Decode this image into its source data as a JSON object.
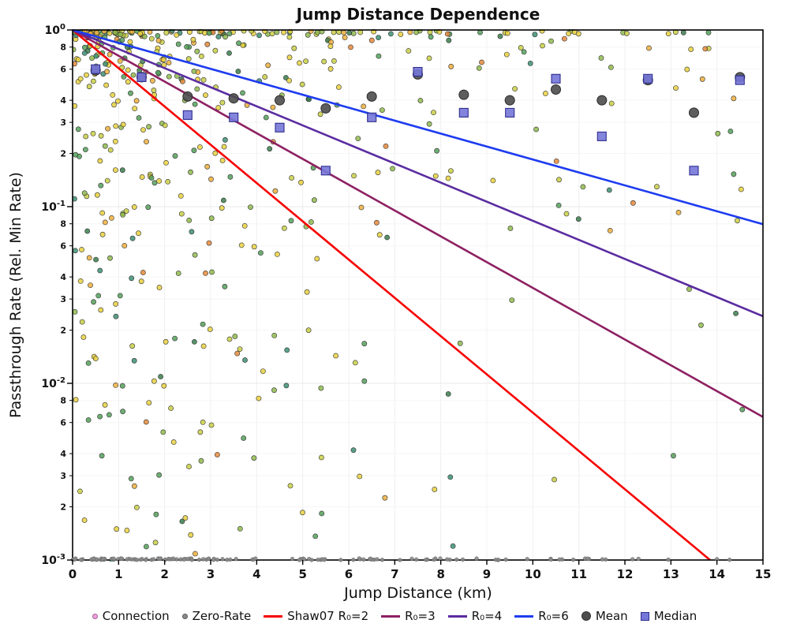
{
  "chart": {
    "title": "Jump Distance Dependence",
    "xlabel": "Jump Distance (km)",
    "ylabel": "Passthrough Rate (Rel. Min Rate)"
  },
  "chart_data": {
    "type": "scatter",
    "title": "Jump Distance Dependence",
    "xlabel": "Jump Distance (km)",
    "ylabel": "Passthrough Rate (Rel. Min Rate)",
    "xlim": [
      0,
      15
    ],
    "x_ticks": [
      0,
      1,
      2,
      3,
      4,
      5,
      6,
      7,
      8,
      9,
      10,
      11,
      12,
      13,
      14,
      15
    ],
    "y_scale": "log",
    "ylim": [
      0.001,
      1.0
    ],
    "y_decades": [
      0,
      -1,
      -2,
      -3
    ],
    "y_minor_labels": [
      8,
      6,
      4,
      3,
      2
    ],
    "grid": true,
    "legend_position": "bottom",
    "series": [
      {
        "name": "Connection",
        "type": "scatter",
        "marker": "circle",
        "count": 540,
        "seed": 1337,
        "point_radius_px": 3.1,
        "x_distribution": {
          "type": "mixture",
          "exponential_mean_km": 3.0,
          "uniform_fraction": 0.25,
          "max": 14.9
        },
        "y_distribution": {
          "type": "log_power",
          "decades": 3,
          "power": 2.8
        },
        "palette": [
          {
            "color": "#e8d13f",
            "w": 0.26
          },
          {
            "color": "#c9cf45",
            "w": 0.14
          },
          {
            "color": "#8fba4c",
            "w": 0.13
          },
          {
            "color": "#55a05a",
            "w": 0.17
          },
          {
            "color": "#3d8f74",
            "w": 0.08
          },
          {
            "color": "#ecaf3d",
            "w": 0.11
          },
          {
            "color": "#e5893a",
            "w": 0.05
          },
          {
            "color": "#3b7d4e",
            "w": 0.06
          }
        ]
      },
      {
        "name": "Zero-Rate",
        "type": "scatter",
        "marker": "circle",
        "color": "#8a8a8a",
        "count": 130,
        "seed": 99,
        "y_value": 0.001,
        "x_max": 14.3
      },
      {
        "name": "Shaw07 R₀=2",
        "type": "line",
        "color": "#f60000",
        "y0": 1.0,
        "decay_decades_per_km": 0.2166
      },
      {
        "name": "R₀=3",
        "type": "line",
        "color": "#8e2162",
        "y0": 1.0,
        "decay_decades_per_km": 0.146
      },
      {
        "name": "R₀=4",
        "type": "line",
        "color": "#5a2ca0",
        "y0": 1.0,
        "decay_decades_per_km": 0.108
      },
      {
        "name": "R₀=6",
        "type": "line",
        "color": "#1e3cf0",
        "y0": 1.0,
        "decay_decades_per_km": 0.0733
      },
      {
        "name": "Mean",
        "type": "points",
        "marker": "circle",
        "color": "#4d4d4d",
        "x": [
          0.5,
          1.5,
          2.5,
          3.5,
          4.5,
          5.5,
          6.5,
          7.5,
          8.5,
          9.5,
          10.5,
          11.5,
          12.5,
          13.5,
          14.5
        ],
        "y": [
          0.59,
          0.54,
          0.42,
          0.41,
          0.4,
          0.36,
          0.42,
          0.56,
          0.43,
          0.4,
          0.46,
          0.4,
          0.52,
          0.34,
          0.54
        ]
      },
      {
        "name": "Median",
        "type": "points",
        "marker": "square",
        "color": "#7577d8",
        "x": [
          0.5,
          1.5,
          2.5,
          3.5,
          4.5,
          5.5,
          6.5,
          7.5,
          8.5,
          9.5,
          10.5,
          11.5,
          12.5,
          13.5,
          14.5
        ],
        "y": [
          0.6,
          0.54,
          0.33,
          0.32,
          0.28,
          0.16,
          0.32,
          0.58,
          0.34,
          0.34,
          0.53,
          0.25,
          0.53,
          0.16,
          0.52
        ]
      }
    ]
  },
  "legend": {
    "items": [
      {
        "label": "Connection",
        "marker": "dot",
        "color": "#f29fe1",
        "size": 7
      },
      {
        "label": "Zero-Rate",
        "marker": "dot",
        "color": "#8a8a8a",
        "size": 7
      },
      {
        "label": "Shaw07 R₀=2",
        "marker": "line",
        "color": "#f60000",
        "size": 3
      },
      {
        "label": "R₀=3",
        "marker": "line",
        "color": "#8e2162",
        "size": 3
      },
      {
        "label": "R₀=4",
        "marker": "line",
        "color": "#5a2ca0",
        "size": 3
      },
      {
        "label": "R₀=6",
        "marker": "line",
        "color": "#1e3cf0",
        "size": 3
      },
      {
        "label": "Mean",
        "marker": "dot",
        "color": "#4d4d4d",
        "size": 12
      },
      {
        "label": "Median",
        "marker": "square",
        "color": "#7577d8",
        "size": 11
      }
    ]
  }
}
